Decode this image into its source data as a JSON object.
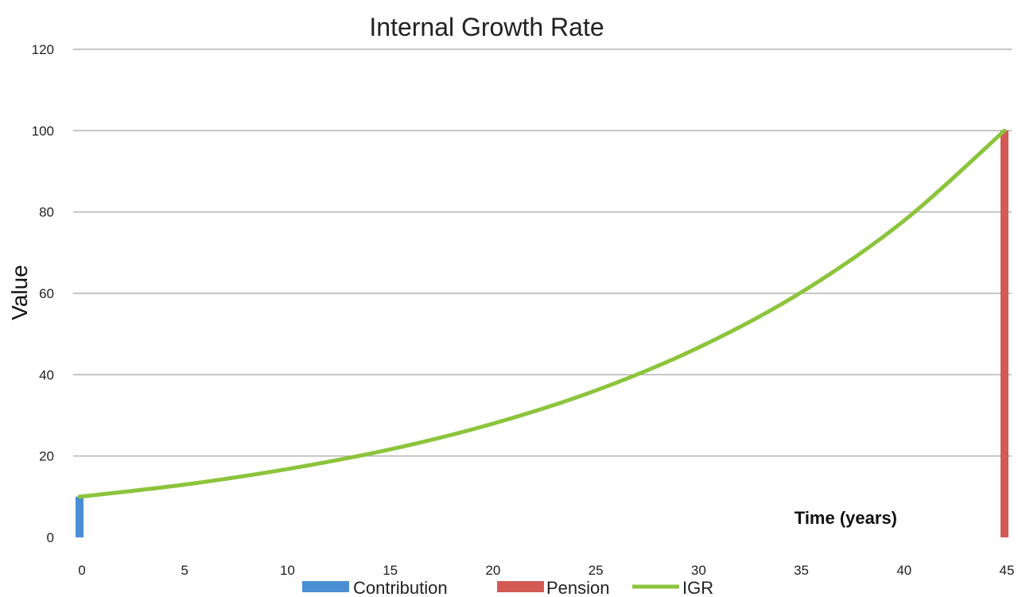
{
  "chart_data": {
    "type": "line",
    "title": "Internal Growth Rate",
    "xlabel": "Time (years)",
    "ylabel": "Value",
    "xlim": [
      0,
      45
    ],
    "ylim": [
      0,
      120
    ],
    "x_ticks": [
      0,
      5,
      10,
      15,
      20,
      25,
      30,
      35,
      40,
      45
    ],
    "y_ticks": [
      0,
      20,
      40,
      60,
      80,
      100,
      120
    ],
    "grid": true,
    "legend_position": "bottom",
    "series": [
      {
        "name": "Contribution",
        "type": "bar",
        "color": "#4a8fd4",
        "points": [
          {
            "x": 0,
            "y": 10
          }
        ]
      },
      {
        "name": "Pension",
        "type": "bar",
        "color": "#d45a55",
        "points": [
          {
            "x": 45,
            "y": 100
          }
        ]
      },
      {
        "name": "IGR",
        "type": "line",
        "color": "#8cc43c",
        "x": [
          0,
          5,
          10,
          15,
          20,
          25,
          30,
          35,
          40,
          45
        ],
        "y": [
          10,
          12.9,
          16.7,
          21.5,
          27.8,
          35.9,
          46.4,
          59.9,
          77.4,
          100
        ]
      }
    ]
  }
}
